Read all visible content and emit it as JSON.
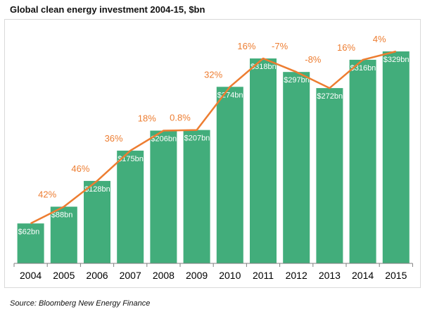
{
  "chart_data": {
    "type": "bar",
    "title": "Global clean energy investment 2004-15, $bn",
    "source": "Source: Bloomberg New Energy Finance",
    "categories": [
      "2004",
      "2005",
      "2006",
      "2007",
      "2008",
      "2009",
      "2010",
      "2011",
      "2012",
      "2013",
      "2014",
      "2015"
    ],
    "values": [
      62,
      88,
      128,
      175,
      206,
      207,
      274,
      318,
      297,
      272,
      316,
      329
    ],
    "bar_labels": [
      "$62bn",
      "$88bn",
      "$128bn",
      "$175bn",
      "$206bn",
      "$207bn",
      "$274bn",
      "$318bn",
      "$297bn",
      "$272bn",
      "$316bn",
      "$329bn"
    ],
    "growth_labels": [
      "",
      "42%",
      "46%",
      "36%",
      "18%",
      "0.8%",
      "32%",
      "16%",
      "-7%",
      "-8%",
      "16%",
      "4%"
    ],
    "ylim": [
      0,
      360
    ],
    "grid": false,
    "colors": {
      "bar": "#42ad7b",
      "line": "#ed7d31",
      "growth_text": "#ed7d31",
      "bar_text": "#ffffff"
    }
  }
}
